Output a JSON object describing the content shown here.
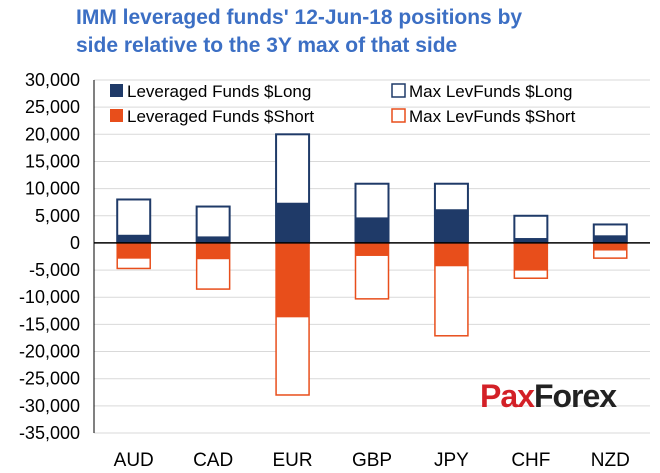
{
  "colors": {
    "title": "#3c6fc4",
    "long": "#1f3a68",
    "short": "#e84e1b",
    "grid": "#d9d9d9",
    "axis": "#000000",
    "watermark_accent": "#d32027",
    "watermark_dark": "#222222"
  },
  "title_lines": [
    "IMM leveraged funds' 12-Jun-18 positions by",
    "side relative to the 3Y max of that side"
  ],
  "watermark": {
    "part1": "Pax",
    "part2": "Forex"
  },
  "chart_data": {
    "type": "bar",
    "grid": true,
    "legend_position": "top-right",
    "ylim": [
      -35000,
      30000
    ],
    "yticks": [
      30000,
      25000,
      20000,
      15000,
      10000,
      5000,
      0,
      -5000,
      -10000,
      -15000,
      -20000,
      -25000,
      -30000,
      -35000
    ],
    "ytick_labels": [
      "30,000",
      "25,000",
      "20,000",
      "15,000",
      "10,000",
      "5,000",
      "0",
      "-5,000",
      "-10,000",
      "-15,000",
      "-20,000",
      "-25,000",
      "-30,000",
      "-35,000"
    ],
    "categories": [
      "AUD",
      "CAD",
      "EUR",
      "GBP",
      "JPY",
      "CHF",
      "NZD"
    ],
    "series": [
      {
        "name": "Leveraged Funds $Long",
        "style": "filled",
        "color": "#1f3a68",
        "values": [
          1500,
          1200,
          7400,
          4700,
          6200,
          900,
          1400
        ]
      },
      {
        "name": "Leveraged Funds $Short",
        "style": "filled",
        "color": "#e84e1b",
        "values": [
          -2900,
          -3000,
          -13700,
          -2400,
          -4300,
          -5100,
          -1400
        ]
      },
      {
        "name": "Max LevFunds $Long",
        "style": "outline",
        "color": "#1f3a68",
        "values": [
          8000,
          6700,
          20000,
          10900,
          10900,
          5000,
          3400
        ]
      },
      {
        "name": "Max LevFunds $Short",
        "style": "outline",
        "color": "#e84e1b",
        "values": [
          -4700,
          -8500,
          -28000,
          -10300,
          -17100,
          -6500,
          -2800
        ]
      }
    ]
  }
}
